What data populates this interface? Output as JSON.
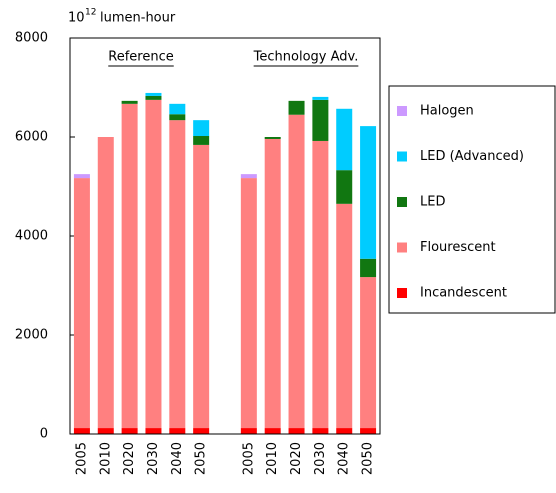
{
  "chart_data": {
    "type": "stacked_bar",
    "y_axis_label": {
      "base": "10",
      "exponent": "12",
      "unit": "lumen-hour"
    },
    "annotations": [
      "Reference",
      "Technology Adv."
    ],
    "categories": [
      "2005",
      "2010",
      "2020",
      "2030",
      "2040",
      "2050",
      null,
      "2005",
      "2010",
      "2020",
      "2030",
      "2040",
      "2050"
    ],
    "series": [
      {
        "name": "Incandescent",
        "color": "#ff0000",
        "values": [
          120,
          120,
          120,
          120,
          120,
          120,
          null,
          120,
          120,
          120,
          120,
          120,
          120
        ]
      },
      {
        "name": "Flourescent",
        "color": "#ff8080",
        "values": [
          5050,
          5880,
          6550,
          6630,
          6220,
          5720,
          null,
          5050,
          5840,
          6330,
          5800,
          4530,
          3050
        ]
      },
      {
        "name": "LED",
        "color": "#117711",
        "values": [
          0,
          0,
          60,
          80,
          120,
          180,
          null,
          0,
          40,
          280,
          830,
          680,
          370
        ]
      },
      {
        "name": "LED (Advanced)",
        "color": "#00ccff",
        "values": [
          0,
          0,
          0,
          60,
          210,
          320,
          null,
          0,
          0,
          0,
          60,
          1240,
          2680
        ]
      },
      {
        "name": "Halogen",
        "color": "#cc99ff",
        "values": [
          80,
          0,
          0,
          0,
          0,
          0,
          null,
          80,
          0,
          0,
          0,
          0,
          0
        ]
      }
    ],
    "ylim": [
      0,
      8000
    ],
    "yticks": [
      0,
      2000,
      4000,
      6000,
      8000
    ],
    "legend": "right"
  }
}
